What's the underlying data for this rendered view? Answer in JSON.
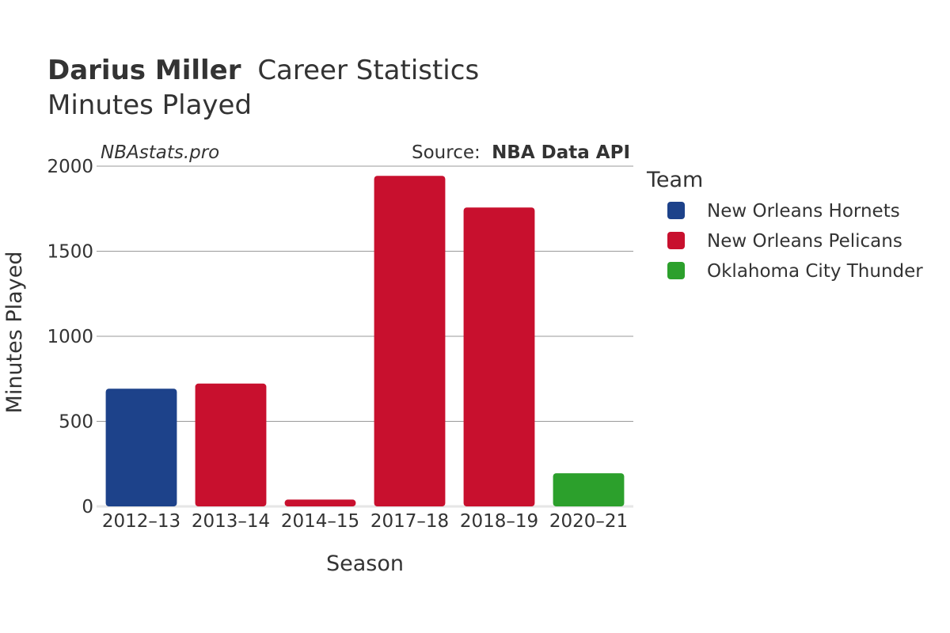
{
  "title": {
    "player": "Darius Miller",
    "suffix": "Career Statistics",
    "metric": "Minutes Played"
  },
  "watermark": "NBAstats.pro",
  "source": {
    "prefix": "Source:",
    "name": "NBA Data API"
  },
  "legend": {
    "title": "Team",
    "items": [
      {
        "label": "New Orleans Hornets",
        "color": "#1d428a"
      },
      {
        "label": "New Orleans Pelicans",
        "color": "#c8102e"
      },
      {
        "label": "Oklahoma City Thunder",
        "color": "#2ca02c"
      }
    ]
  },
  "chart_data": {
    "type": "bar",
    "title": "Darius Miller Career Statistics",
    "subtitle": "Minutes Played",
    "xlabel": "Season",
    "ylabel": "Minutes Played",
    "ylim": [
      0,
      2000
    ],
    "yticks": [
      0,
      500,
      1000,
      1500,
      2000
    ],
    "grid": true,
    "legend_position": "right",
    "categories": [
      "2012–13",
      "2013–14",
      "2014–15",
      "2017–18",
      "2018–19",
      "2020–21"
    ],
    "values": [
      692,
      722,
      40,
      1943,
      1757,
      195
    ],
    "teams": [
      "New Orleans Hornets",
      "New Orleans Pelicans",
      "New Orleans Pelicans",
      "New Orleans Pelicans",
      "New Orleans Pelicans",
      "Oklahoma City Thunder"
    ]
  }
}
